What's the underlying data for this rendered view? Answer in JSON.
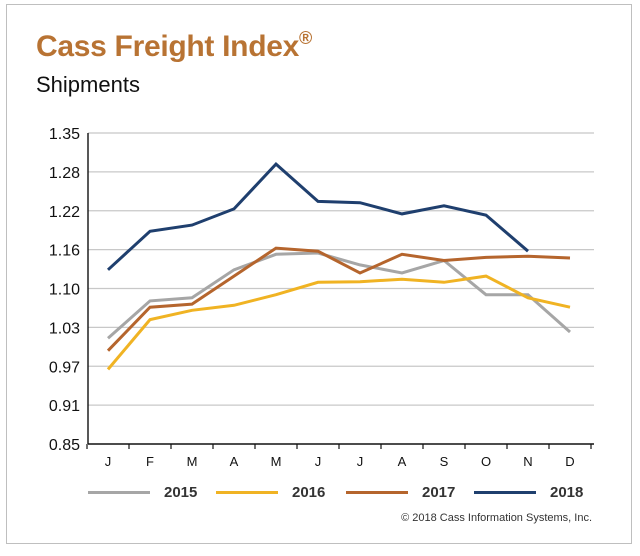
{
  "header": {
    "title": "Cass Freight Index",
    "title_mark": "®",
    "subtitle": "Shipments"
  },
  "footer": {
    "copyright": "© 2018 Cass Information Systems, Inc."
  },
  "chart_data": {
    "type": "line",
    "title": "Cass Freight Index®",
    "subtitle": "Shipments",
    "xlabel": "",
    "ylabel": "",
    "categories": [
      "J",
      "F",
      "M",
      "A",
      "M",
      "J",
      "J",
      "A",
      "S",
      "O",
      "N",
      "D"
    ],
    "yticks": [
      "1.35",
      "1.28",
      "1.22",
      "1.16",
      "1.10",
      "1.03",
      "0.97",
      "0.91",
      "0.85"
    ],
    "ylim": [
      0.85,
      1.35
    ],
    "grid": "horizontal",
    "legend": "bottom",
    "series": [
      {
        "name": "2015",
        "color": "#a6a6a6",
        "values": [
          1.02,
          1.08,
          1.085,
          1.13,
          1.155,
          1.157,
          1.138,
          1.125,
          1.145,
          1.09,
          1.09,
          1.03
        ]
      },
      {
        "name": "2016",
        "color": "#f0b323",
        "values": [
          0.97,
          1.05,
          1.065,
          1.073,
          1.09,
          1.11,
          1.111,
          1.115,
          1.11,
          1.12,
          1.085,
          1.07
        ]
      },
      {
        "name": "2017",
        "color": "#b5652d",
        "values": [
          1.0,
          1.07,
          1.075,
          1.12,
          1.165,
          1.16,
          1.125,
          1.155,
          1.145,
          1.15,
          1.152,
          1.149
        ]
      },
      {
        "name": "2018",
        "color": "#1f3f6e",
        "values": [
          1.13,
          1.192,
          1.202,
          1.228,
          1.3,
          1.24,
          1.238,
          1.22,
          1.233,
          1.218,
          1.16,
          null
        ]
      }
    ]
  }
}
